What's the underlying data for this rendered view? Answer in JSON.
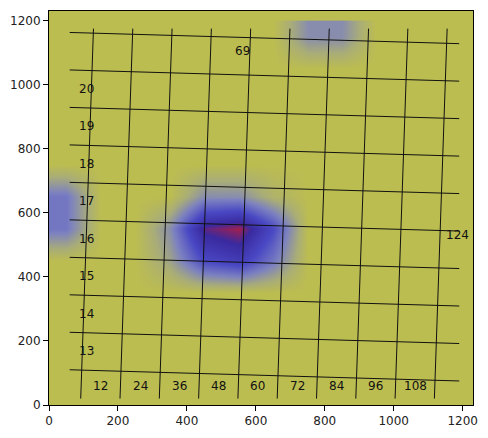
{
  "chart_data": {
    "type": "heatmap",
    "x": [
      50,
      150,
      250,
      350,
      450,
      550,
      650,
      750,
      850,
      950,
      1050,
      1150
    ],
    "y": [
      50,
      150,
      250,
      350,
      450,
      550,
      650,
      750,
      850,
      950,
      1050,
      1150
    ],
    "z": [
      [
        0,
        0,
        0,
        0,
        0,
        0,
        0,
        0,
        0,
        0,
        0,
        0
      ],
      [
        0,
        0,
        0,
        0,
        0,
        0,
        0,
        0,
        0,
        0,
        0,
        0
      ],
      [
        0,
        0,
        0,
        0,
        0,
        0,
        0,
        0,
        0,
        0,
        0,
        0
      ],
      [
        0,
        0,
        0,
        0,
        0,
        0,
        0,
        0,
        0,
        0,
        0,
        0
      ],
      [
        0,
        0,
        0,
        0.2,
        0.6,
        0.7,
        0.4,
        0,
        0,
        0,
        0,
        0
      ],
      [
        0.4,
        0,
        0,
        0.3,
        0.9,
        1.0,
        0.6,
        0,
        0,
        0,
        0,
        0
      ],
      [
        0.4,
        0,
        0,
        0,
        0.3,
        0.3,
        0.1,
        0,
        0,
        0,
        0,
        0
      ],
      [
        0,
        0,
        0,
        0,
        0,
        0,
        0,
        0,
        0,
        0,
        0,
        0
      ],
      [
        0,
        0,
        0,
        0,
        0,
        0,
        0,
        0,
        0,
        0,
        0,
        0
      ],
      [
        0,
        0,
        0,
        0,
        0,
        0,
        0,
        0,
        0,
        0,
        0,
        0
      ],
      [
        0,
        0,
        0,
        0,
        0,
        0,
        0,
        0,
        0,
        0,
        0,
        0
      ],
      [
        0,
        0,
        0,
        0,
        0,
        0,
        0,
        0.3,
        0.3,
        0,
        0,
        0
      ]
    ],
    "zlim": [
      0,
      1
    ],
    "xlim": [
      0,
      1230
    ],
    "ylim": [
      0,
      1230
    ],
    "xticks": [
      0,
      200,
      400,
      600,
      800,
      1000,
      1200
    ],
    "yticks": [
      0,
      200,
      400,
      600,
      800,
      1000,
      1200
    ],
    "grid": false,
    "overlay_lines": {
      "vertical": [
        {
          "x0": 92,
          "y0": 20,
          "x1": 129,
          "y1": 1175
        },
        {
          "x0": 206,
          "y0": 20,
          "x1": 243,
          "y1": 1175
        },
        {
          "x0": 320,
          "y0": 20,
          "x1": 357,
          "y1": 1175
        },
        {
          "x0": 434,
          "y0": 20,
          "x1": 471,
          "y1": 1175
        },
        {
          "x0": 548,
          "y0": 20,
          "x1": 585,
          "y1": 1175
        },
        {
          "x0": 662,
          "y0": 20,
          "x1": 699,
          "y1": 1175
        },
        {
          "x0": 776,
          "y0": 20,
          "x1": 813,
          "y1": 1175
        },
        {
          "x0": 890,
          "y0": 20,
          "x1": 927,
          "y1": 1175
        },
        {
          "x0": 1004,
          "y0": 20,
          "x1": 1041,
          "y1": 1175
        },
        {
          "x0": 1118,
          "y0": 20,
          "x1": 1155,
          "y1": 1175
        }
      ],
      "horizontal": [
        {
          "x0": 60,
          "y0": 110,
          "x1": 1190,
          "y1": 75
        },
        {
          "x0": 60,
          "y0": 227,
          "x1": 1190,
          "y1": 192
        },
        {
          "x0": 60,
          "y0": 344,
          "x1": 1190,
          "y1": 309
        },
        {
          "x0": 60,
          "y0": 461,
          "x1": 1190,
          "y1": 426
        },
        {
          "x0": 60,
          "y0": 578,
          "x1": 1190,
          "y1": 543
        },
        {
          "x0": 60,
          "y0": 695,
          "x1": 1190,
          "y1": 660
        },
        {
          "x0": 60,
          "y0": 812,
          "x1": 1190,
          "y1": 777
        },
        {
          "x0": 60,
          "y0": 929,
          "x1": 1190,
          "y1": 894
        },
        {
          "x0": 60,
          "y0": 1046,
          "x1": 1190,
          "y1": 1011
        },
        {
          "x0": 60,
          "y0": 1163,
          "x1": 1190,
          "y1": 1128
        }
      ]
    },
    "annotations": [
      {
        "text": "12",
        "x": 150,
        "y": 60
      },
      {
        "text": "24",
        "x": 264,
        "y": 60
      },
      {
        "text": "36",
        "x": 378,
        "y": 60
      },
      {
        "text": "48",
        "x": 492,
        "y": 60
      },
      {
        "text": "60",
        "x": 606,
        "y": 60
      },
      {
        "text": "72",
        "x": 720,
        "y": 60
      },
      {
        "text": "84",
        "x": 834,
        "y": 60
      },
      {
        "text": "96",
        "x": 948,
        "y": 60
      },
      {
        "text": "108",
        "x": 1062,
        "y": 60
      },
      {
        "text": "13",
        "x": 110,
        "y": 168
      },
      {
        "text": "14",
        "x": 110,
        "y": 285
      },
      {
        "text": "15",
        "x": 110,
        "y": 402
      },
      {
        "text": "16",
        "x": 110,
        "y": 519
      },
      {
        "text": "17",
        "x": 110,
        "y": 636
      },
      {
        "text": "18",
        "x": 110,
        "y": 753
      },
      {
        "text": "19",
        "x": 110,
        "y": 870
      },
      {
        "text": "20",
        "x": 110,
        "y": 987
      },
      {
        "text": "69",
        "x": 560,
        "y": 1105
      },
      {
        "text": "124",
        "x": 1185,
        "y": 530
      }
    ]
  }
}
